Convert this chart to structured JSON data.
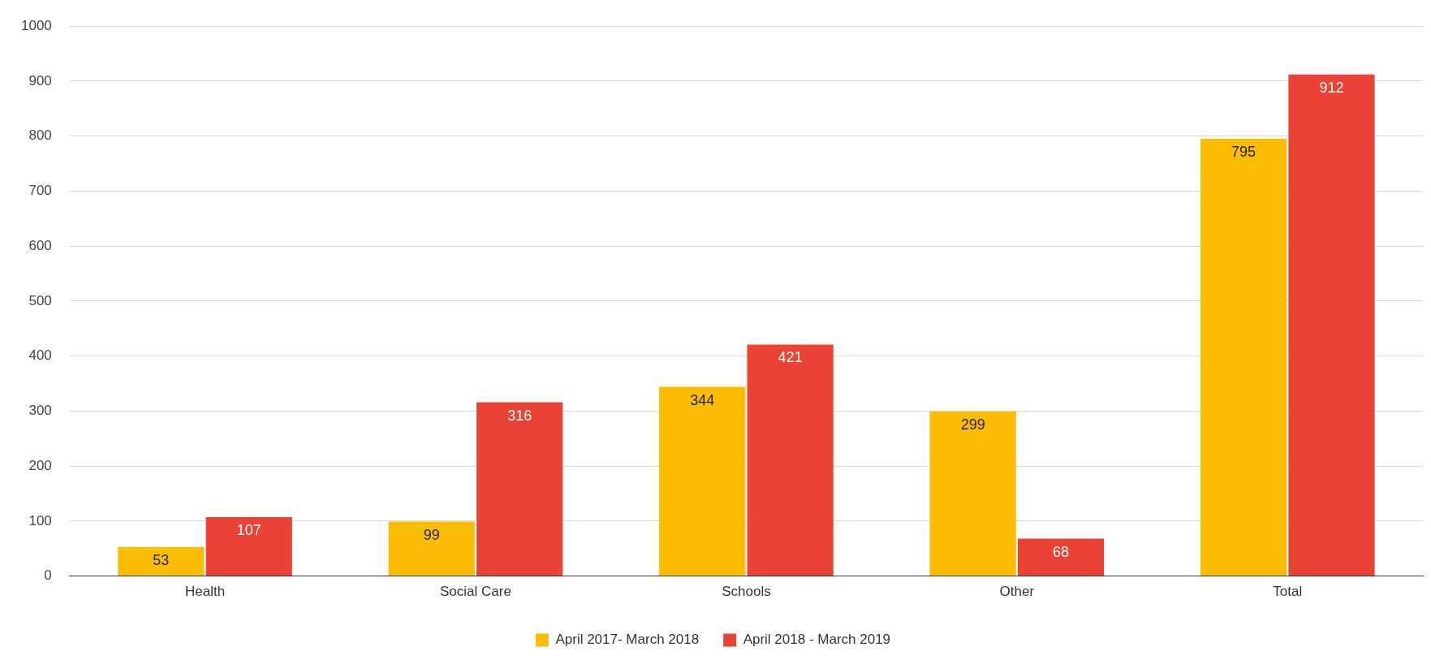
{
  "chart_data": {
    "type": "bar",
    "categories": [
      "Health",
      "Social Care",
      "Schools",
      "Other",
      "Total"
    ],
    "series": [
      {
        "name": "April 2017- March 2018",
        "color": "#fbbc04",
        "values": [
          53,
          99,
          344,
          299,
          795
        ]
      },
      {
        "name": "April 2018 - March 2019",
        "color": "#ea4335",
        "values": [
          107,
          316,
          421,
          68,
          912
        ]
      }
    ],
    "ylim": [
      0,
      1000
    ],
    "yticks": [
      0,
      100,
      200,
      300,
      400,
      500,
      600,
      700,
      800,
      900,
      1000
    ],
    "grid": "y",
    "legend": "bottom",
    "data_labels": true
  }
}
